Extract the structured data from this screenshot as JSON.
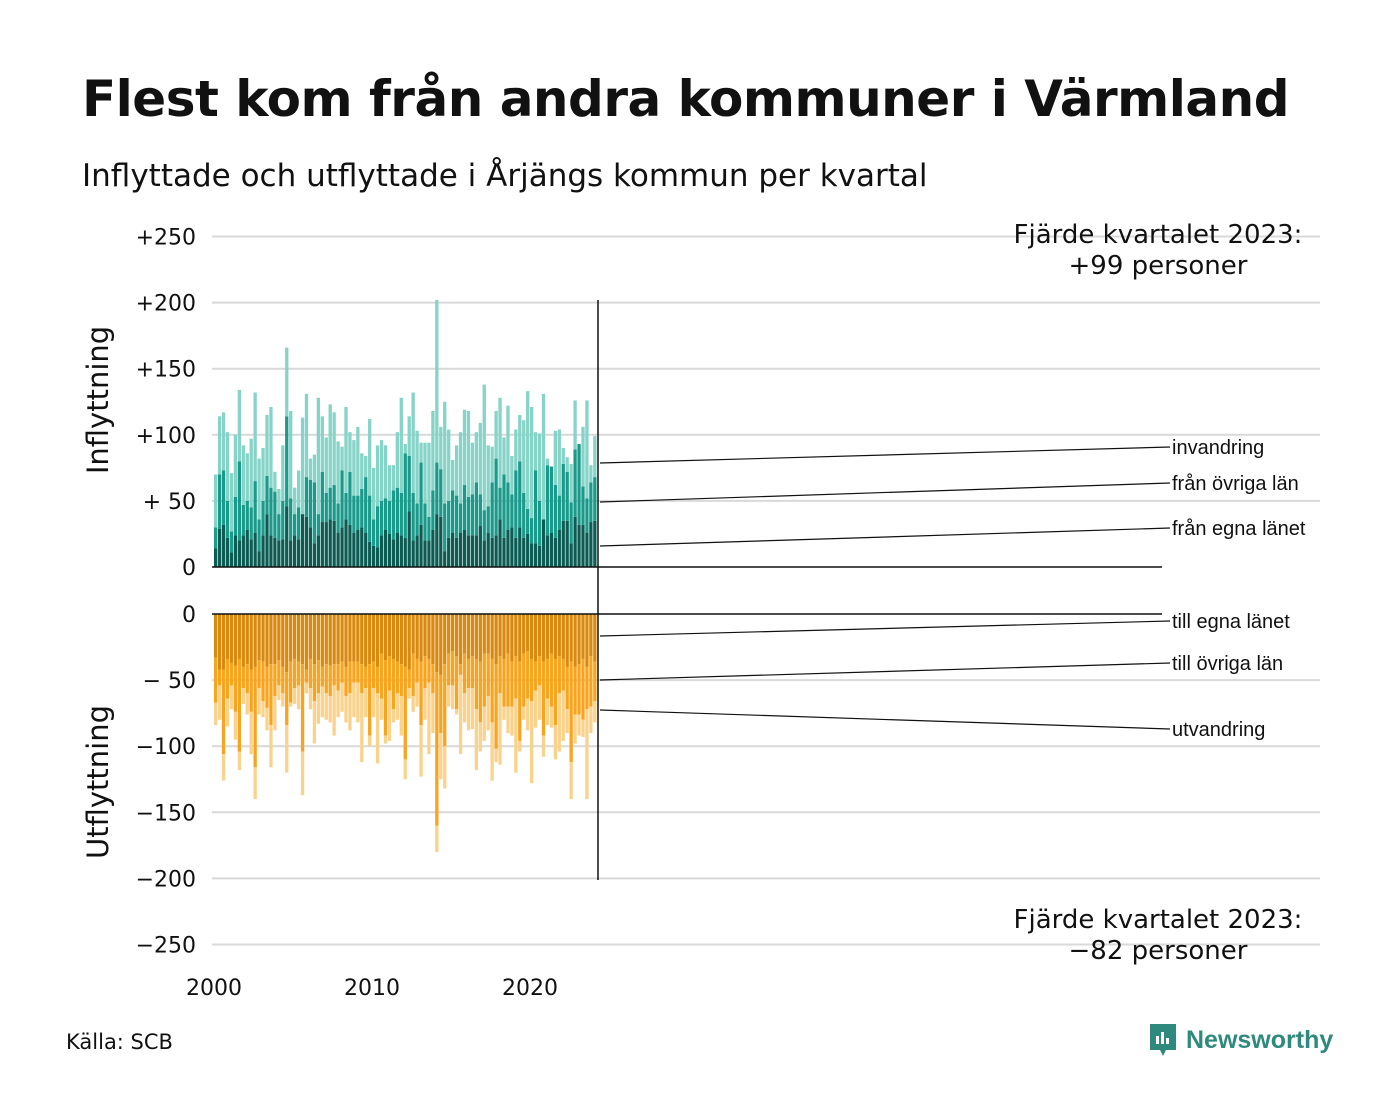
{
  "title": "Flest kom från andra kommuner i Värmland",
  "subtitle": "Inflyttade och utflyttade i Årjängs kommun per kvartal",
  "source": "Källa: SCB",
  "brand": "Newsworthy",
  "colors": {
    "egna_in": "#0d5c54",
    "ovriga_in": "#1a9a8a",
    "invandring": "#86d3c8",
    "egna_out": "#d98a0e",
    "ovriga_out": "#f8a41e",
    "utvandring": "#fbd28b",
    "grid": "#d9d9d9",
    "axis": "#111111"
  },
  "chart_data": {
    "type": "bar",
    "stacked": true,
    "x_start": 2000,
    "x_step": "kvartal",
    "xticks": [
      "2000",
      "2010",
      "2020"
    ],
    "top_panel": {
      "ylabel": "Inflyttning",
      "ylim": [
        0,
        250
      ],
      "yticks": [
        "0",
        "+ 50",
        "+100",
        "+150",
        "+200",
        "+250"
      ],
      "annotation": [
        "Fjärde kvartalet 2023:",
        "+99 personer"
      ],
      "series": [
        {
          "name": "från egna länet",
          "values": [
            14,
            29,
            32,
            22,
            11,
            24,
            20,
            24,
            28,
            21,
            26,
            12,
            24,
            40,
            24,
            22,
            20,
            21,
            46,
            20,
            24,
            21,
            40,
            38,
            30,
            18,
            24,
            34,
            34,
            36,
            35,
            26,
            30,
            36,
            32,
            26,
            28,
            30,
            26,
            19,
            16,
            15,
            24,
            28,
            25,
            21,
            26,
            24,
            22,
            42,
            20,
            24,
            32,
            20,
            20,
            28,
            40,
            38,
            12,
            22,
            26,
            22,
            26,
            28,
            24,
            24,
            24,
            31,
            20,
            26,
            22,
            24,
            36,
            22,
            28,
            30,
            22,
            30,
            22,
            25,
            18,
            18,
            16,
            36,
            24,
            26,
            22,
            28,
            35,
            35,
            18,
            38,
            32,
            32,
            26,
            34,
            35
          ],
          "label": "från egna länet"
        },
        {
          "name": "från övriga län",
          "values": [
            30,
            70,
            73,
            50,
            27,
            53,
            80,
            47,
            50,
            45,
            65,
            36,
            50,
            69,
            60,
            57,
            40,
            50,
            114,
            52,
            40,
            45,
            40,
            68,
            66,
            64,
            40,
            72,
            56,
            60,
            62,
            48,
            73,
            56,
            72,
            54,
            54,
            59,
            68,
            54,
            36,
            46,
            50,
            52,
            50,
            58,
            60,
            56,
            86,
            84,
            56,
            48,
            79,
            48,
            38,
            58,
            79,
            74,
            48,
            50,
            58,
            54,
            48,
            62,
            53,
            55,
            64,
            55,
            43,
            46,
            64,
            82,
            60,
            70,
            64,
            55,
            73,
            80,
            56,
            44,
            37,
            73,
            50,
            36,
            77,
            76,
            62,
            54,
            78,
            72,
            49,
            89,
            93,
            61,
            52,
            64,
            68
          ]
        },
        {
          "name": "invandring",
          "values": [
            70,
            114,
            117,
            102,
            71,
            100,
            134,
            92,
            86,
            97,
            132,
            82,
            90,
            115,
            121,
            72,
            59,
            92,
            166,
            118,
            60,
            73,
            113,
            131,
            82,
            85,
            128,
            114,
            98,
            123,
            117,
            95,
            91,
            121,
            102,
            96,
            106,
            86,
            84,
            112,
            75,
            92,
            96,
            92,
            77,
            77,
            102,
            128,
            93,
            114,
            132,
            103,
            94,
            94,
            94,
            118,
            202,
            106,
            125,
            104,
            81,
            92,
            102,
            119,
            118,
            94,
            102,
            109,
            138,
            92,
            91,
            118,
            128,
            98,
            122,
            84,
            104,
            115,
            111,
            133,
            121,
            102,
            101,
            131,
            82,
            68,
            103,
            104,
            90,
            83,
            78,
            126,
            91,
            106,
            126,
            77,
            99
          ]
        }
      ],
      "end_labels": [
        "invandring",
        "från övriga län",
        "från egna länet"
      ]
    },
    "bottom_panel": {
      "ylabel": "Utflyttning",
      "ylim": [
        -250,
        0
      ],
      "yticks": [
        "0",
        "− 50",
        "−100",
        "−150",
        "−200",
        "−250"
      ],
      "annotation": [
        "Fjärde kvartalet 2023:",
        "−82 personer"
      ],
      "series": [
        {
          "name": "till egna länet",
          "values": [
            -33,
            -42,
            -42,
            -34,
            -37,
            -39,
            -34,
            -40,
            -38,
            -42,
            -40,
            -35,
            -36,
            -40,
            -38,
            -38,
            -35,
            -40,
            -44,
            -36,
            -34,
            -36,
            -38,
            -42,
            -34,
            -38,
            -35,
            -40,
            -38,
            -39,
            -38,
            -38,
            -36,
            -40,
            -36,
            -36,
            -36,
            -38,
            -40,
            -38,
            -36,
            -40,
            -30,
            -35,
            -32,
            -34,
            -36,
            -38,
            -40,
            -42,
            -30,
            -34,
            -36,
            -32,
            -34,
            -38,
            -44,
            -46,
            -38,
            -30,
            -28,
            -32,
            -38,
            -30,
            -34,
            -32,
            -34,
            -36,
            -30,
            -30,
            -34,
            -38,
            -32,
            -34,
            -30,
            -36,
            -32,
            -36,
            -30,
            -28,
            -34,
            -36,
            -32,
            -36,
            -34,
            -30,
            -34,
            -32,
            -34,
            -40,
            -36,
            -40,
            -38,
            -34,
            -40,
            -32,
            -36
          ]
        },
        {
          "name": "till övriga län",
          "values": [
            -67,
            -54,
            -106,
            -64,
            -54,
            -74,
            -104,
            -56,
            -60,
            -74,
            -116,
            -56,
            -66,
            -71,
            -84,
            -62,
            -54,
            -60,
            -84,
            -67,
            -56,
            -54,
            -104,
            -52,
            -56,
            -66,
            -60,
            -55,
            -60,
            -62,
            -54,
            -58,
            -52,
            -62,
            -60,
            -52,
            -52,
            -60,
            -56,
            -92,
            -56,
            -60,
            -64,
            -92,
            -58,
            -72,
            -60,
            -62,
            -110,
            -56,
            -62,
            -52,
            -84,
            -56,
            -52,
            -60,
            -160,
            -90,
            -100,
            -54,
            -54,
            -72,
            -46,
            -60,
            -56,
            -56,
            -72,
            -82,
            -70,
            -62,
            -82,
            -102,
            -60,
            -70,
            -70,
            -70,
            -64,
            -96,
            -70,
            -64,
            -66,
            -58,
            -54,
            -92,
            -64,
            -70,
            -84,
            -60,
            -58,
            -72,
            -112,
            -76,
            -76,
            -80,
            -72,
            -70,
            -66
          ]
        },
        {
          "name": "utvandring",
          "values": [
            -84,
            -80,
            -126,
            -85,
            -72,
            -95,
            -118,
            -68,
            -76,
            -106,
            -140,
            -76,
            -78,
            -88,
            -116,
            -88,
            -65,
            -70,
            -120,
            -70,
            -68,
            -72,
            -137,
            -60,
            -72,
            -98,
            -83,
            -78,
            -80,
            -82,
            -92,
            -78,
            -74,
            -82,
            -88,
            -78,
            -82,
            -112,
            -78,
            -100,
            -78,
            -113,
            -80,
            -98,
            -96,
            -82,
            -80,
            -92,
            -125,
            -64,
            -74,
            -70,
            -123,
            -80,
            -106,
            -90,
            -180,
            -125,
            -132,
            -70,
            -72,
            -76,
            -106,
            -82,
            -88,
            -87,
            -118,
            -104,
            -96,
            -88,
            -126,
            -112,
            -114,
            -80,
            -90,
            -92,
            -120,
            -104,
            -80,
            -88,
            -128,
            -86,
            -80,
            -108,
            -84,
            -86,
            -110,
            -104,
            -96,
            -90,
            -140,
            -98,
            -92,
            -93,
            -140,
            -90,
            -82
          ]
        }
      ],
      "end_labels": [
        "till egna länet",
        "till övriga län",
        "utvandring"
      ]
    }
  }
}
